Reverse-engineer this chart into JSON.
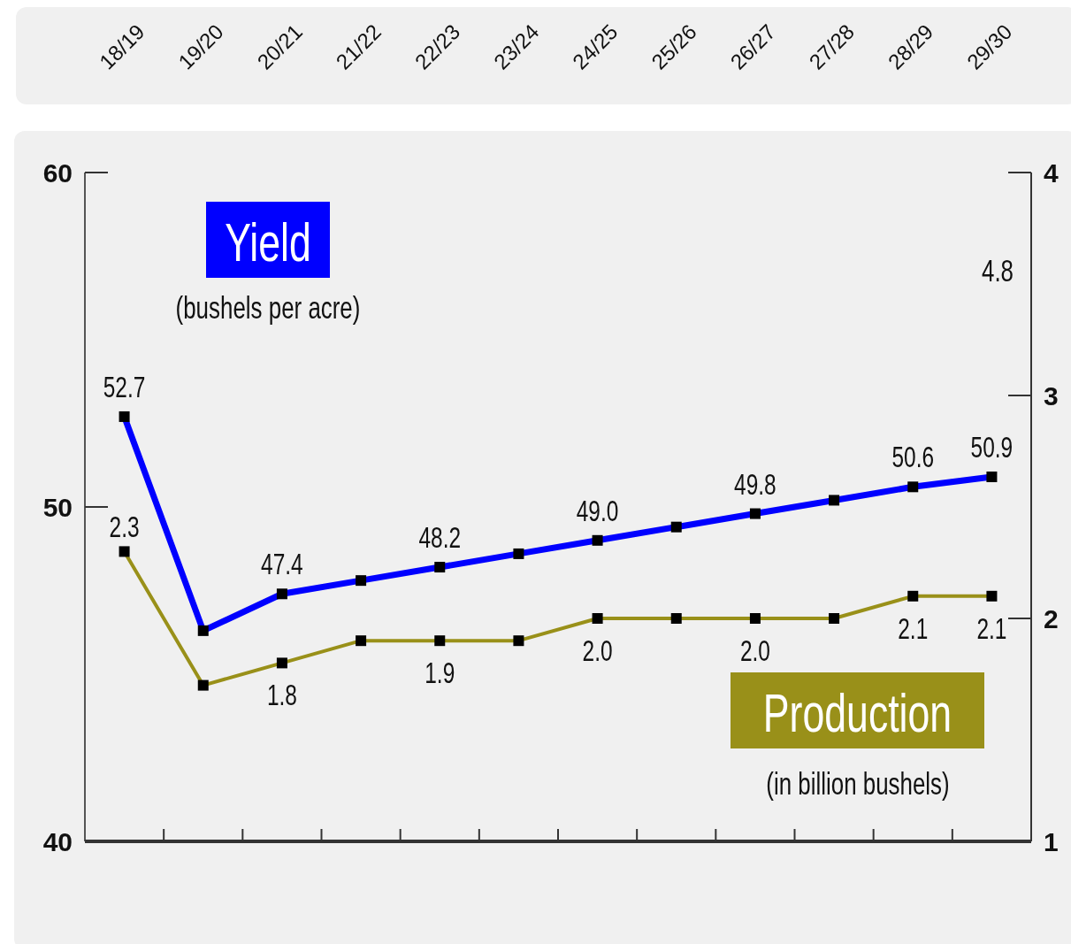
{
  "chart_data": {
    "type": "line",
    "categories": [
      "18/19",
      "19/20",
      "20/21",
      "21/22",
      "22/23",
      "23/24",
      "24/25",
      "25/26",
      "26/27",
      "27/28",
      "28/29",
      "29/30"
    ],
    "ylabel": "(bushels per acre)",
    "y2label": "(in billion bushels)",
    "ylim": [
      40,
      60
    ],
    "yticks": [
      40,
      50,
      60
    ],
    "y2lim": [
      1,
      4
    ],
    "y2ticks": [
      1,
      2,
      3,
      4
    ],
    "marker": "square",
    "line_style": "solid",
    "series": [
      {
        "name": "Yield",
        "color": "#0000ff",
        "values": [
          52.7,
          46.3,
          47.4,
          47.8,
          48.2,
          48.6,
          49.0,
          49.4,
          49.8,
          50.2,
          50.6,
          50.9
        ],
        "value_labels": [
          "52.7",
          null,
          "47.4",
          null,
          "48.2",
          null,
          "49.0",
          null,
          "49.8",
          null,
          "50.6",
          "50.9"
        ]
      },
      {
        "name": "Production",
        "color": "#999019",
        "axis": "y2",
        "values": [
          2.3,
          1.7,
          1.8,
          1.9,
          1.9,
          1.9,
          2.0,
          2.0,
          2.0,
          2.0,
          2.1,
          2.1
        ],
        "value_labels": [
          "2.3",
          null,
          "1.8",
          null,
          "1.9",
          null,
          "2.0",
          null,
          "2.0",
          null,
          "2.1",
          "2.1"
        ]
      }
    ],
    "annotations": [
      "4.8"
    ]
  }
}
